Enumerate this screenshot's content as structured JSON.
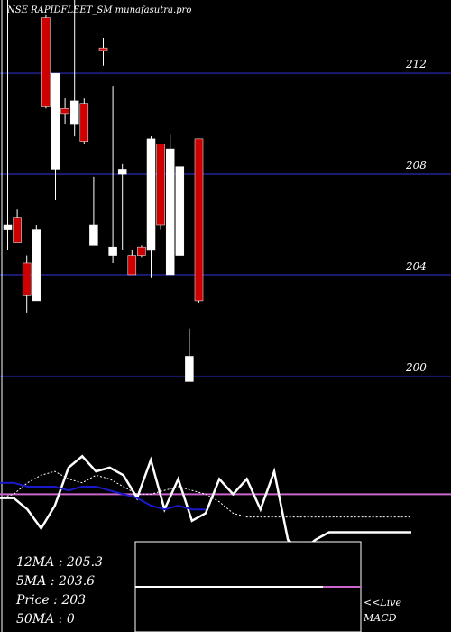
{
  "header": {
    "symbol_text": "NSE RAPIDFLEET_SM munafasutra.pro"
  },
  "colors": {
    "background": "#000000",
    "gridline": "#1a1a6e",
    "bull": "#ffffff",
    "bear": "#cc0000",
    "wick": "#ffffff",
    "macd_line": "#ffffff",
    "signal_line": "#ffffff",
    "ma_line": "#1a1acc",
    "zero_line": "#cc66cc"
  },
  "stats": {
    "ma12": "12MA : 205.3",
    "ma5": "5MA : 203.6",
    "price": "Price   : 203",
    "ma50": "50MA : 0"
  },
  "labels": {
    "live": "<<Live",
    "macd": "MACD"
  },
  "chart_data": [
    {
      "type": "candlestick",
      "y_axis_ticks": [
        200,
        204,
        208,
        212
      ],
      "ylim": [
        198.1,
        214.9
      ],
      "grid": true,
      "candles": [
        {
          "open": 206.0,
          "high": 215.0,
          "low": 205.0,
          "close": 205.8,
          "color": "bull"
        },
        {
          "open": 206.3,
          "high": 206.6,
          "low": 205.3,
          "close": 205.3,
          "color": "bear"
        },
        {
          "open": 204.5,
          "high": 204.8,
          "low": 202.5,
          "close": 203.2,
          "color": "bear"
        },
        {
          "open": 203.0,
          "high": 206.0,
          "low": 203.0,
          "close": 205.8,
          "color": "bull"
        },
        {
          "open": 214.2,
          "high": 214.3,
          "low": 210.6,
          "close": 210.7,
          "color": "bear"
        },
        {
          "open": 208.2,
          "high": 212.0,
          "low": 207.0,
          "close": 212.0,
          "color": "bull"
        },
        {
          "open": 210.6,
          "high": 211.0,
          "low": 210.0,
          "close": 210.4,
          "color": "bear"
        },
        {
          "open": 210.0,
          "high": 214.9,
          "low": 209.5,
          "close": 210.9,
          "color": "bull"
        },
        {
          "open": 210.8,
          "high": 211.0,
          "low": 209.2,
          "close": 209.3,
          "color": "bear"
        },
        {
          "open": 205.2,
          "high": 207.9,
          "low": 205.2,
          "close": 206.0,
          "color": "bull"
        },
        {
          "open": 213.0,
          "high": 213.4,
          "low": 212.3,
          "close": 212.9,
          "color": "bear"
        },
        {
          "open": 204.8,
          "high": 211.5,
          "low": 204.5,
          "close": 205.1,
          "color": "bull"
        },
        {
          "open": 208.0,
          "high": 208.4,
          "low": 205.0,
          "close": 208.2,
          "color": "bull"
        },
        {
          "open": 204.8,
          "high": 205.0,
          "low": 204.0,
          "close": 204.0,
          "color": "bear"
        },
        {
          "open": 205.1,
          "high": 205.2,
          "low": 204.7,
          "close": 204.8,
          "color": "bear"
        },
        {
          "open": 205.0,
          "high": 209.5,
          "low": 203.9,
          "close": 209.4,
          "color": "bull"
        },
        {
          "open": 209.2,
          "high": 209.2,
          "low": 205.8,
          "close": 206.0,
          "color": "bear"
        },
        {
          "open": 204.0,
          "high": 209.6,
          "low": 204.0,
          "close": 209.0,
          "color": "bull"
        },
        {
          "open": 204.8,
          "high": 208.3,
          "low": 204.8,
          "close": 208.3,
          "color": "bull"
        },
        {
          "open": 199.8,
          "high": 201.9,
          "low": 199.8,
          "close": 200.8,
          "color": "bull"
        },
        {
          "open": 209.4,
          "high": 209.4,
          "low": 202.9,
          "close": 203.0,
          "color": "bear"
        }
      ]
    },
    {
      "type": "line",
      "title": "MACD",
      "series": [
        {
          "key": "macd",
          "x": [
            0,
            1,
            2,
            3,
            4,
            5,
            6,
            7,
            8,
            9,
            10,
            11,
            12,
            13,
            14,
            15,
            16,
            17,
            18,
            19,
            20,
            21,
            22,
            23,
            24,
            25,
            26,
            27,
            28,
            29,
            30
          ],
          "values": [
            -0.1,
            -0.1,
            -0.4,
            -0.9,
            -0.3,
            0.7,
            1.0,
            0.6,
            0.7,
            0.5,
            -0.1,
            0.9,
            -0.4,
            0.4,
            -0.7,
            -0.5,
            0.4,
            0.0,
            0.4,
            -0.4,
            0.6,
            -1.2,
            -1.5,
            -1.2,
            -1.0,
            -1.0,
            -1.0,
            -1.0,
            -1.0,
            -1.0,
            -1.0
          ]
        },
        {
          "key": "signal",
          "x": [
            0,
            1,
            2,
            3,
            4,
            5,
            6,
            7,
            8,
            9,
            10,
            11,
            12,
            13,
            14,
            15,
            16,
            17,
            18,
            19,
            20,
            21,
            22,
            23,
            24,
            25,
            26,
            27,
            28,
            29,
            30
          ],
          "values": [
            -0.1,
            0.0,
            0.3,
            0.5,
            0.6,
            0.4,
            0.3,
            0.5,
            0.4,
            0.2,
            0.0,
            0.0,
            0.1,
            0.2,
            0.1,
            0.0,
            -0.2,
            -0.5,
            -0.6,
            -0.6,
            -0.6,
            -0.6,
            -0.6,
            -0.6,
            -0.6,
            -0.6,
            -0.6,
            -0.6,
            -0.6,
            -0.6,
            -0.6
          ]
        },
        {
          "key": "ma",
          "x": [
            0,
            1,
            2,
            3,
            4,
            5,
            6,
            7,
            8,
            9,
            10,
            11,
            12,
            13,
            14,
            15
          ],
          "values": [
            0.3,
            0.3,
            0.2,
            0.2,
            0.2,
            0.1,
            0.2,
            0.2,
            0.1,
            0.0,
            -0.1,
            -0.3,
            -0.4,
            -0.3,
            -0.4,
            -0.4
          ]
        }
      ],
      "zero_line": 0
    }
  ]
}
